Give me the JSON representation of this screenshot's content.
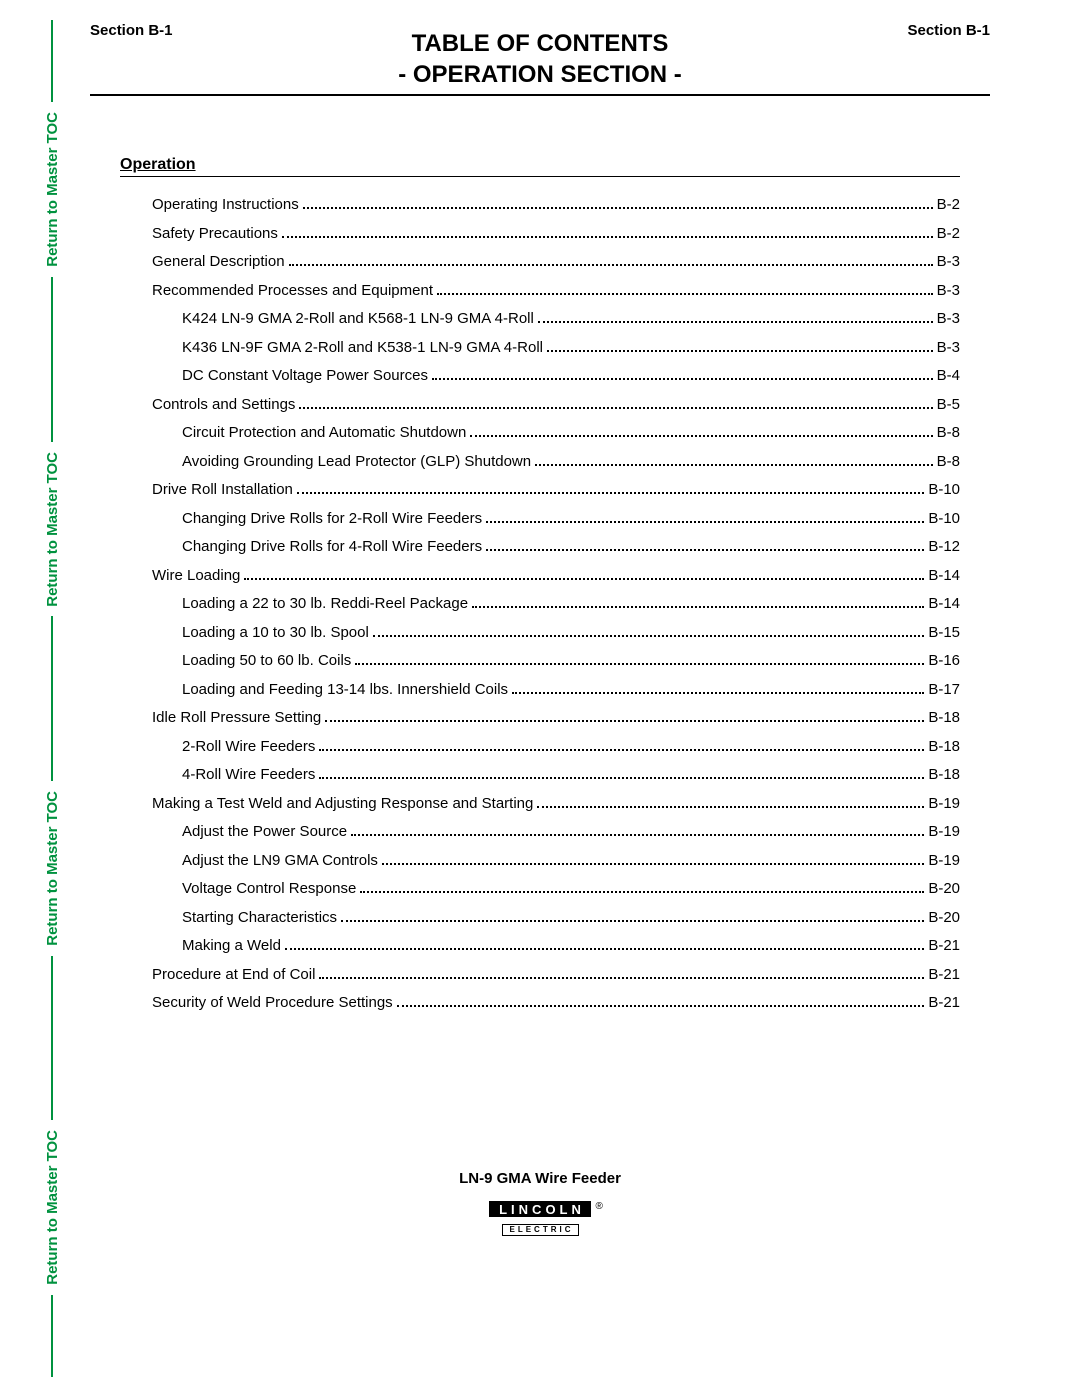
{
  "side_rail": {
    "text": "Return to Master TOC",
    "color": "#00923f",
    "count": 4
  },
  "header": {
    "section_left": "Section B-1",
    "section_right": "Section B-1",
    "title_line1": "TABLE OF CONTENTS",
    "title_line2": "- OPERATION SECTION -"
  },
  "toc": {
    "heading": "Operation",
    "entries": [
      {
        "label": "Operating Instructions",
        "page": "B-2",
        "indent": 0
      },
      {
        "label": "Safety Precautions",
        "page": "B-2",
        "indent": 0
      },
      {
        "label": "General Description",
        "page": "B-3",
        "indent": 0
      },
      {
        "label": "Recommended Processes and Equipment",
        "page": "B-3",
        "indent": 0
      },
      {
        "label": "K424 LN-9 GMA 2-Roll and K568-1 LN-9 GMA 4-Roll",
        "page": "B-3",
        "indent": 1
      },
      {
        "label": "K436 LN-9F GMA 2-Roll and K538-1 LN-9 GMA 4-Roll",
        "page": "B-3",
        "indent": 1
      },
      {
        "label": "DC Constant Voltage Power Sources",
        "page": "B-4",
        "indent": 1
      },
      {
        "label": "Controls and Settings",
        "page": "B-5",
        "indent": 0
      },
      {
        "label": "Circuit Protection and Automatic Shutdown",
        "page": "B-8",
        "indent": 1
      },
      {
        "label": "Avoiding Grounding Lead Protector (GLP) Shutdown",
        "page": "B-8",
        "indent": 1
      },
      {
        "label": "Drive Roll Installation",
        "page": "B-10",
        "indent": 0
      },
      {
        "label": "Changing Drive Rolls for 2-Roll Wire Feeders",
        "page": "B-10",
        "indent": 1
      },
      {
        "label": "Changing Drive Rolls for 4-Roll Wire Feeders",
        "page": "B-12",
        "indent": 1
      },
      {
        "label": "Wire Loading",
        "page": "B-14",
        "indent": 0
      },
      {
        "label": "Loading a 22 to 30 lb. Reddi-Reel Package",
        "page": "B-14",
        "indent": 1
      },
      {
        "label": "Loading a 10 to 30 lb. Spool",
        "page": "B-15",
        "indent": 1
      },
      {
        "label": "Loading 50 to 60 lb. Coils",
        "page": "B-16",
        "indent": 1
      },
      {
        "label": "Loading and Feeding 13-14 lbs. Innershield Coils",
        "page": "B-17",
        "indent": 1
      },
      {
        "label": "Idle Roll Pressure Setting",
        "page": "B-18",
        "indent": 0
      },
      {
        "label": "2-Roll Wire Feeders",
        "page": "B-18",
        "indent": 1
      },
      {
        "label": "4-Roll Wire Feeders",
        "page": "B-18",
        "indent": 1
      },
      {
        "label": "Making a Test Weld and Adjusting Response and Starting",
        "page": "B-19",
        "indent": 0
      },
      {
        "label": "Adjust the Power Source",
        "page": "B-19",
        "indent": 1
      },
      {
        "label": "Adjust the LN9 GMA Controls",
        "page": "B-19",
        "indent": 1
      },
      {
        "label": "Voltage Control Response",
        "page": "B-20",
        "indent": 1
      },
      {
        "label": "Starting Characteristics",
        "page": "B-20",
        "indent": 1
      },
      {
        "label": "Making a Weld",
        "page": "B-21",
        "indent": 1
      },
      {
        "label": "Procedure at End of Coil",
        "page": "B-21",
        "indent": 0
      },
      {
        "label": "Security of Weld Procedure Settings",
        "page": "B-21",
        "indent": 0
      }
    ]
  },
  "footer": {
    "product": "LN-9 GMA Wire Feeder",
    "logo_top": "LINCOLN",
    "logo_bot": "ELECTRIC",
    "registered": "®"
  }
}
